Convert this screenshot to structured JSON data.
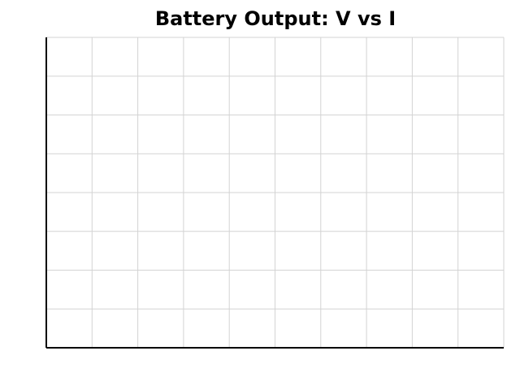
{
  "chart_data": {
    "type": "line",
    "title": "Battery Output: V vs I",
    "xlabel": "",
    "ylabel": "",
    "grid": true,
    "x_gridline_count": 10,
    "y_gridline_count": 8,
    "series": []
  },
  "colors": {
    "axis": "#000000",
    "grid": "#d3d3d3",
    "background": "#ffffff"
  }
}
